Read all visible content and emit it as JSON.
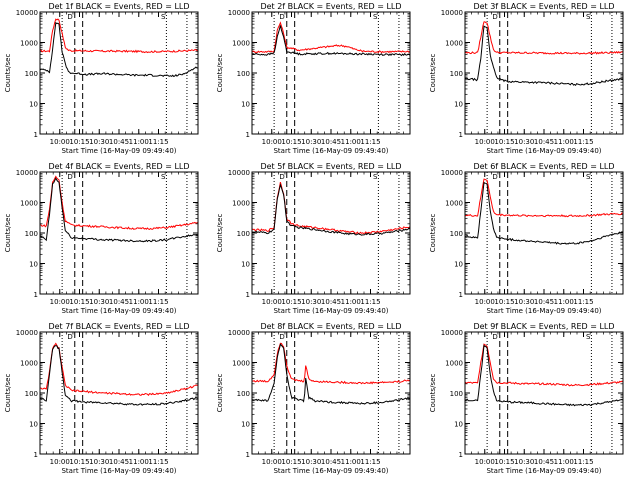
{
  "figure": {
    "colors": {
      "events": "#000000",
      "lld": "#ff0000",
      "axes": "#000000"
    }
  },
  "chart_data": [
    {
      "type": "line",
      "title": "Det 1f BLACK = Events, RED = LLD",
      "xlabel": "Start Time (16-May-09 09:49:40)",
      "ylabel": "Counts/sec",
      "xticks": [
        "10:00",
        "10:15",
        "10:30",
        "10:45",
        "11:00",
        "11:15"
      ],
      "yscale": "log",
      "ylim": [
        1,
        10000
      ],
      "yticks": [
        "1",
        "10",
        "100",
        "1000",
        "10000"
      ],
      "markers": [
        "D",
        "S"
      ],
      "series": [
        {
          "name": "LLD",
          "color": "#ff0000",
          "x": [
            0,
            0.06,
            0.08,
            0.1,
            0.12,
            0.14,
            0.16,
            0.18,
            0.2,
            0.3,
            0.4,
            0.5,
            0.6,
            0.7,
            0.8,
            0.9,
            1.0
          ],
          "y": [
            530,
            520,
            2500,
            6000,
            5500,
            2000,
            700,
            560,
            540,
            530,
            520,
            520,
            510,
            500,
            510,
            530,
            560
          ]
        },
        {
          "name": "Events",
          "color": "#000000",
          "x": [
            0,
            0.04,
            0.06,
            0.08,
            0.1,
            0.12,
            0.14,
            0.16,
            0.18,
            0.2,
            0.3,
            0.4,
            0.5,
            0.6,
            0.7,
            0.8,
            0.85,
            0.9,
            0.95,
            1.0
          ],
          "y": [
            130,
            125,
            110,
            600,
            4500,
            4000,
            500,
            200,
            110,
            100,
            90,
            95,
            90,
            85,
            85,
            80,
            80,
            90,
            120,
            160
          ]
        }
      ]
    },
    {
      "type": "line",
      "title": "Det 2f BLACK = Events, RED = LLD",
      "xlabel": "Start Time (16-May-09 09:49:40)",
      "ylabel": "Counts/sec",
      "xticks": [
        "10:00",
        "10:15",
        "10:30",
        "10:45",
        "11:00",
        "11:15"
      ],
      "yscale": "log",
      "ylim": [
        1,
        10000
      ],
      "yticks": [
        "1",
        "10",
        "100",
        "1000",
        "10000"
      ],
      "markers": [
        "D",
        "S"
      ],
      "series": [
        {
          "name": "LLD",
          "color": "#ff0000",
          "x": [
            0,
            0.1,
            0.14,
            0.16,
            0.18,
            0.2,
            0.22,
            0.3,
            0.4,
            0.5,
            0.55,
            0.6,
            0.65,
            0.7,
            0.8,
            0.9,
            1.0
          ],
          "y": [
            500,
            500,
            520,
            2500,
            4500,
            2000,
            700,
            560,
            650,
            750,
            800,
            750,
            600,
            520,
            500,
            500,
            510
          ]
        },
        {
          "name": "Events",
          "color": "#000000",
          "x": [
            0,
            0.1,
            0.14,
            0.16,
            0.18,
            0.2,
            0.22,
            0.3,
            0.4,
            0.5,
            0.6,
            0.7,
            0.8,
            0.9,
            1.0
          ],
          "y": [
            420,
            400,
            450,
            1500,
            3500,
            1500,
            500,
            420,
            430,
            440,
            430,
            420,
            410,
            400,
            400
          ]
        }
      ]
    },
    {
      "type": "line",
      "title": "Det 3f BLACK = Events, RED = LLD",
      "xlabel": "Start Time (16-May-09 09:49:40)",
      "ylabel": "Counts/sec",
      "xticks": [
        "10:00",
        "10:15",
        "10:30",
        "10:45",
        "11:00",
        "11:15"
      ],
      "yscale": "log",
      "ylim": [
        1,
        10000
      ],
      "yticks": [
        "1",
        "10",
        "100",
        "1000",
        "10000"
      ],
      "markers": [
        "D",
        "S"
      ],
      "series": [
        {
          "name": "LLD",
          "color": "#ff0000",
          "x": [
            0,
            0.08,
            0.1,
            0.12,
            0.14,
            0.16,
            0.18,
            0.2,
            0.3,
            0.4,
            0.5,
            0.6,
            0.7,
            0.8,
            0.9,
            1.0
          ],
          "y": [
            460,
            460,
            1500,
            5000,
            4500,
            1500,
            600,
            470,
            460,
            460,
            450,
            450,
            440,
            450,
            460,
            480
          ]
        },
        {
          "name": "Events",
          "color": "#000000",
          "x": [
            0,
            0.08,
            0.1,
            0.12,
            0.14,
            0.16,
            0.18,
            0.2,
            0.25,
            0.3,
            0.4,
            0.5,
            0.6,
            0.7,
            0.8,
            0.9,
            1.0
          ],
          "y": [
            65,
            60,
            300,
            3500,
            3000,
            400,
            150,
            70,
            55,
            52,
            50,
            48,
            45,
            42,
            45,
            55,
            65
          ]
        }
      ]
    },
    {
      "type": "line",
      "title": "Det 4f BLACK = Events, RED = LLD",
      "xlabel": "Start Time (16-May-09 09:49:40)",
      "ylabel": "Counts/sec",
      "xticks": [
        "10:00",
        "10:15",
        "10:30",
        "10:45",
        "11:00",
        "11:15"
      ],
      "yscale": "log",
      "ylim": [
        1,
        10000
      ],
      "yticks": [
        "1",
        "10",
        "100",
        "1000",
        "10000"
      ],
      "markers": [
        "D",
        "S"
      ],
      "series": [
        {
          "name": "LLD",
          "color": "#ff0000",
          "x": [
            0,
            0.04,
            0.06,
            0.08,
            0.1,
            0.12,
            0.14,
            0.16,
            0.2,
            0.3,
            0.4,
            0.5,
            0.6,
            0.7,
            0.8,
            0.9,
            1.0
          ],
          "y": [
            180,
            170,
            600,
            4500,
            7000,
            5500,
            1000,
            250,
            180,
            170,
            160,
            150,
            140,
            140,
            150,
            180,
            220
          ]
        },
        {
          "name": "Events",
          "color": "#000000",
          "x": [
            0,
            0.04,
            0.06,
            0.08,
            0.1,
            0.12,
            0.14,
            0.16,
            0.2,
            0.3,
            0.4,
            0.5,
            0.6,
            0.7,
            0.8,
            0.9,
            1.0
          ],
          "y": [
            80,
            60,
            400,
            4000,
            6000,
            4500,
            700,
            120,
            70,
            65,
            60,
            58,
            55,
            55,
            60,
            75,
            90
          ]
        }
      ]
    },
    {
      "type": "line",
      "title": "Det 5f BLACK = Events, RED = LLD",
      "xlabel": "Start Time (16-May-09 09:49:40)",
      "ylabel": "Counts/sec",
      "xticks": [
        "10:00",
        "10:15",
        "10:30",
        "10:45",
        "11:00",
        "11:15"
      ],
      "yscale": "log",
      "ylim": [
        1,
        10000
      ],
      "yticks": [
        "1",
        "10",
        "100",
        "1000",
        "10000"
      ],
      "markers": [
        "D",
        "S"
      ],
      "series": [
        {
          "name": "LLD",
          "color": "#ff0000",
          "x": [
            0,
            0.1,
            0.14,
            0.16,
            0.18,
            0.2,
            0.22,
            0.25,
            0.3,
            0.4,
            0.5,
            0.6,
            0.7,
            0.8,
            0.9,
            1.0
          ],
          "y": [
            130,
            120,
            150,
            1500,
            4500,
            2000,
            300,
            200,
            170,
            150,
            130,
            110,
            100,
            110,
            130,
            160
          ]
        },
        {
          "name": "Events",
          "color": "#000000",
          "x": [
            0,
            0.1,
            0.14,
            0.16,
            0.18,
            0.2,
            0.22,
            0.25,
            0.3,
            0.4,
            0.5,
            0.6,
            0.7,
            0.8,
            0.9,
            1.0
          ],
          "y": [
            110,
            100,
            130,
            1300,
            4000,
            1800,
            250,
            170,
            150,
            130,
            110,
            95,
            90,
            95,
            110,
            140
          ]
        }
      ]
    },
    {
      "type": "line",
      "title": "Det 6f BLACK = Events, RED = LLD",
      "xlabel": "Start Time (16-May-09 09:49:40)",
      "ylabel": "Counts/sec",
      "xticks": [
        "10:00",
        "10:15",
        "10:30",
        "10:45",
        "11:00",
        "11:15"
      ],
      "yscale": "log",
      "ylim": [
        1,
        10000
      ],
      "yticks": [
        "1",
        "10",
        "100",
        "1000",
        "10000"
      ],
      "markers": [
        "D",
        "S"
      ],
      "series": [
        {
          "name": "LLD",
          "color": "#ff0000",
          "x": [
            0,
            0.08,
            0.1,
            0.12,
            0.14,
            0.16,
            0.18,
            0.2,
            0.3,
            0.4,
            0.5,
            0.6,
            0.7,
            0.8,
            0.9,
            1.0
          ],
          "y": [
            380,
            370,
            1500,
            6000,
            5500,
            1500,
            500,
            400,
            380,
            370,
            370,
            370,
            360,
            380,
            410,
            430
          ]
        },
        {
          "name": "Events",
          "color": "#000000",
          "x": [
            0,
            0.08,
            0.1,
            0.12,
            0.14,
            0.16,
            0.18,
            0.2,
            0.3,
            0.4,
            0.5,
            0.6,
            0.7,
            0.8,
            0.9,
            1.0
          ],
          "y": [
            80,
            70,
            500,
            4500,
            4000,
            500,
            150,
            70,
            60,
            55,
            50,
            45,
            45,
            55,
            80,
            110
          ]
        }
      ]
    },
    {
      "type": "line",
      "title": "Det 7f BLACK = Events, RED = LLD",
      "xlabel": "Start Time (16-May-09 09:49:40)",
      "ylabel": "Counts/sec",
      "xticks": [
        "10:00",
        "10:15",
        "10:30",
        "10:45",
        "11:00",
        "11:15"
      ],
      "yscale": "log",
      "ylim": [
        1,
        10000
      ],
      "yticks": [
        "1",
        "10",
        "100",
        "1000",
        "10000"
      ],
      "markers": [
        "D",
        "S"
      ],
      "series": [
        {
          "name": "LLD",
          "color": "#ff0000",
          "x": [
            0,
            0.04,
            0.06,
            0.08,
            0.1,
            0.12,
            0.14,
            0.16,
            0.2,
            0.3,
            0.4,
            0.5,
            0.6,
            0.7,
            0.8,
            0.9,
            1.0
          ],
          "y": [
            150,
            130,
            500,
            3000,
            4000,
            3000,
            700,
            180,
            120,
            110,
            100,
            95,
            90,
            90,
            100,
            130,
            180
          ]
        },
        {
          "name": "Events",
          "color": "#000000",
          "x": [
            0,
            0.04,
            0.06,
            0.08,
            0.1,
            0.12,
            0.14,
            0.16,
            0.2,
            0.3,
            0.4,
            0.5,
            0.6,
            0.7,
            0.8,
            0.9,
            1.0
          ],
          "y": [
            70,
            55,
            400,
            2800,
            3800,
            2800,
            500,
            90,
            55,
            50,
            48,
            45,
            42,
            42,
            45,
            55,
            70
          ]
        }
      ]
    },
    {
      "type": "line",
      "title": "Det 8f BLACK = Events, RED = LLD",
      "xlabel": "Start Time (16-May-09 09:49:40)",
      "ylabel": "Counts/sec",
      "xticks": [
        "10:00",
        "10:15",
        "10:30",
        "10:45",
        "11:00",
        "11:15"
      ],
      "yscale": "log",
      "ylim": [
        1,
        10000
      ],
      "yticks": [
        "1",
        "10",
        "100",
        "1000",
        "10000"
      ],
      "markers": [
        "D",
        "S"
      ],
      "series": [
        {
          "name": "LLD",
          "color": "#ff0000",
          "x": [
            0,
            0.1,
            0.14,
            0.16,
            0.18,
            0.2,
            0.22,
            0.25,
            0.3,
            0.33,
            0.34,
            0.36,
            0.4,
            0.5,
            0.6,
            0.7,
            0.8,
            0.9,
            1.0
          ],
          "y": [
            250,
            240,
            400,
            2000,
            4500,
            3500,
            800,
            280,
            250,
            240,
            800,
            280,
            240,
            230,
            220,
            210,
            220,
            230,
            260
          ]
        },
        {
          "name": "Events",
          "color": "#000000",
          "x": [
            0,
            0.1,
            0.14,
            0.16,
            0.18,
            0.2,
            0.22,
            0.25,
            0.3,
            0.33,
            0.34,
            0.36,
            0.4,
            0.5,
            0.6,
            0.7,
            0.8,
            0.9,
            1.0
          ],
          "y": [
            60,
            55,
            200,
            1500,
            4000,
            3000,
            400,
            70,
            60,
            55,
            300,
            70,
            55,
            50,
            48,
            45,
            48,
            55,
            70
          ]
        }
      ]
    },
    {
      "type": "line",
      "title": "Det 9f BLACK = Events, RED = LLD",
      "xlabel": "Start Time (16-May-09 09:49:40)",
      "ylabel": "Counts/sec",
      "xticks": [
        "10:00",
        "10:15",
        "10:30",
        "10:45",
        "11:00",
        "11:15"
      ],
      "yscale": "log",
      "ylim": [
        1,
        10000
      ],
      "yticks": [
        "1",
        "10",
        "100",
        "1000",
        "10000"
      ],
      "markers": [
        "D",
        "S"
      ],
      "series": [
        {
          "name": "LLD",
          "color": "#ff0000",
          "x": [
            0,
            0.08,
            0.1,
            0.12,
            0.14,
            0.16,
            0.18,
            0.2,
            0.3,
            0.4,
            0.5,
            0.6,
            0.7,
            0.8,
            0.9,
            1.0
          ],
          "y": [
            220,
            210,
            1000,
            4000,
            3500,
            1000,
            300,
            220,
            210,
            200,
            200,
            190,
            180,
            190,
            210,
            230
          ]
        },
        {
          "name": "Events",
          "color": "#000000",
          "x": [
            0,
            0.08,
            0.1,
            0.12,
            0.14,
            0.16,
            0.18,
            0.2,
            0.3,
            0.4,
            0.5,
            0.6,
            0.7,
            0.8,
            0.9,
            1.0
          ],
          "y": [
            60,
            55,
            400,
            3500,
            3000,
            400,
            120,
            55,
            50,
            48,
            45,
            42,
            40,
            42,
            50,
            60
          ]
        }
      ]
    }
  ]
}
